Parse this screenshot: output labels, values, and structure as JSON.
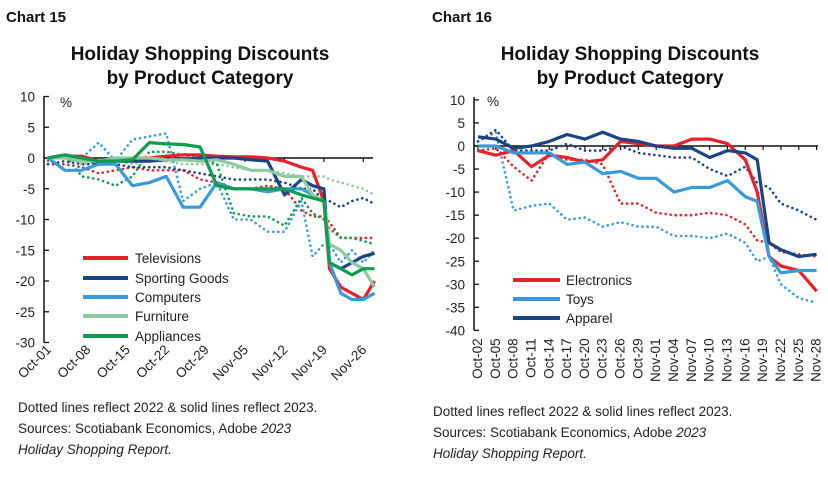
{
  "chart_data": [
    {
      "label": "Chart 15",
      "type": "line",
      "title": [
        "Holiday Shopping Discounts",
        "by Product Category"
      ],
      "ylabel": "%",
      "ylim": [
        -30,
        10
      ],
      "yticks": [
        10,
        5,
        0,
        -5,
        -10,
        -15,
        -20,
        -25,
        -30
      ],
      "xticks": [
        "Oct-01",
        "Oct-08",
        "Oct-15",
        "Oct-22",
        "Oct-29",
        "Nov-05",
        "Nov-12",
        "Nov-19",
        "Nov-26"
      ],
      "x": [
        "Oct-01",
        "Oct-04",
        "Oct-07",
        "Oct-10",
        "Oct-13",
        "Oct-16",
        "Oct-19",
        "Oct-22",
        "Oct-25",
        "Oct-28",
        "Oct-31",
        "Nov-03",
        "Nov-06",
        "Nov-09",
        "Nov-12",
        "Nov-15",
        "Nov-17",
        "Nov-19",
        "Nov-20",
        "Nov-22",
        "Nov-24",
        "Nov-26",
        "Nov-28"
      ],
      "legend_position": "bottom-left",
      "series": [
        {
          "name": "Televisions",
          "color": "#e8202a",
          "style": "solid",
          "values": [
            0,
            0.3,
            0.3,
            -0.5,
            -0.3,
            0,
            0,
            0.3,
            0.5,
            0.5,
            0.3,
            0.2,
            0.2,
            0,
            -0.5,
            -1.5,
            -2,
            -7,
            -18,
            -21,
            -22,
            -23,
            -20
          ]
        },
        {
          "name": "Sporting Goods",
          "color": "#1b4580",
          "style": "solid",
          "values": [
            0,
            0.5,
            0,
            -1,
            -0.5,
            -0.5,
            -0.5,
            -0.3,
            -0.3,
            0,
            0,
            0,
            -0.3,
            -0.5,
            -6,
            -3.5,
            -4.5,
            -5,
            -17,
            -18,
            -17,
            -16,
            -15.5
          ]
        },
        {
          "name": "Computers",
          "color": "#3a9ad9",
          "style": "solid",
          "values": [
            0,
            -2,
            -2,
            -1,
            -1,
            -4.5,
            -4,
            -3,
            -8,
            -8,
            -4,
            -5,
            -5,
            -5.5,
            -5,
            -5,
            -6,
            -7,
            -17,
            -22,
            -23,
            -23,
            -22
          ]
        },
        {
          "name": "Furniture",
          "color": "#8fc9a0",
          "style": "solid",
          "values": [
            0,
            0,
            -0.5,
            -0.5,
            0,
            0,
            0,
            -0.3,
            -0.3,
            -0.5,
            -0.3,
            -1,
            -2,
            -2,
            -3,
            -3,
            -6,
            -7,
            -14,
            -15,
            -17,
            -18,
            -21
          ]
        },
        {
          "name": "Appliances",
          "color": "#0f9b50",
          "style": "solid",
          "values": [
            0,
            0.5,
            0,
            -0.5,
            -0.5,
            -0.3,
            2.5,
            2.3,
            2.2,
            1.8,
            -4.5,
            -5,
            -5,
            -5,
            -5,
            -6,
            -6.5,
            -7,
            -17,
            -18,
            -19,
            -18,
            -18
          ]
        },
        {
          "color": "#e8202a",
          "style": "dotted",
          "values": [
            -1,
            -1,
            -1.5,
            -2.5,
            -2,
            -1.5,
            -2,
            -2,
            -2,
            -3.5,
            -4,
            -5,
            -5,
            -4.5,
            -5,
            -8.5,
            -9.5,
            -9.5,
            -10.5,
            -13,
            -13,
            -13,
            -13
          ]
        },
        {
          "color": "#1b4580",
          "style": "dotted",
          "values": [
            -1,
            -0.5,
            -1,
            -1,
            -1,
            -1.5,
            -1.5,
            -1.5,
            -2,
            -2.5,
            -3,
            -3.5,
            -3.5,
            -3.5,
            -4,
            -5,
            -5,
            -7,
            -7,
            -8,
            -7,
            -6.5,
            -7.5
          ]
        },
        {
          "color": "#3a9ad9",
          "style": "dotted",
          "values": [
            0,
            0.5,
            0,
            2.5,
            -0.5,
            3,
            3.5,
            4,
            -7,
            -5,
            -4,
            -10,
            -10,
            -12,
            -12,
            -7,
            -16,
            -14,
            -14,
            -17,
            -15,
            -17,
            -15
          ]
        },
        {
          "color": "#8fc9a0",
          "style": "dotted",
          "values": [
            0,
            0.5,
            -1,
            -0.5,
            -0.5,
            -1,
            -0.5,
            -0.5,
            -1,
            -1,
            -1,
            -1.5,
            -2,
            -2,
            -2.5,
            -3,
            -3,
            -3,
            -3.5,
            -4,
            -4.5,
            -5,
            -6
          ]
        },
        {
          "color": "#0f9b50",
          "style": "dotted",
          "values": [
            0,
            0.5,
            -3,
            -3.5,
            -4.5,
            -3,
            1,
            1,
            0.5,
            0,
            -1,
            -9,
            -9.5,
            -9.5,
            -11,
            -6.5,
            -9,
            -10,
            -11.5,
            -13,
            -13,
            -13.5,
            -14
          ]
        }
      ],
      "notes": [
        "Dotted lines reflect 2022 & solid lines reflect 2023.",
        "Sources: Scotiabank Economics, Adobe ",
        "2023",
        "Holiday Shopping Report."
      ]
    },
    {
      "label": "Chart 16",
      "type": "line",
      "title": [
        "Holiday Shopping Discounts",
        "by Product Category"
      ],
      "ylabel": "%",
      "ylim": [
        -40,
        10
      ],
      "yticks": [
        10,
        5,
        0,
        -5,
        -10,
        -15,
        -20,
        -25,
        -30,
        -35,
        -40
      ],
      "xticks": [
        "Oct-02",
        "Oct-05",
        "Oct-08",
        "Oct-11",
        "Oct-14",
        "Oct-17",
        "Oct-20",
        "Oct-23",
        "Oct-26",
        "Oct-29",
        "Nov-01",
        "Nov-04",
        "Nov-07",
        "Nov-10",
        "Nov-13",
        "Nov-16",
        "Nov-19",
        "Nov-22",
        "Nov-25",
        "Nov-28"
      ],
      "x": [
        "Oct-02",
        "Oct-05",
        "Oct-08",
        "Oct-11",
        "Oct-14",
        "Oct-17",
        "Oct-20",
        "Oct-23",
        "Oct-26",
        "Oct-29",
        "Nov-01",
        "Nov-04",
        "Nov-07",
        "Nov-10",
        "Nov-13",
        "Nov-16",
        "Nov-18",
        "Nov-20",
        "Nov-22",
        "Nov-25",
        "Nov-28"
      ],
      "legend_position": "bottom-left",
      "series": [
        {
          "name": "Electronics",
          "color": "#e8202a",
          "style": "solid",
          "values": [
            -1,
            -2,
            -1,
            -4.5,
            -2,
            -2.5,
            -3.5,
            -3,
            1,
            0.5,
            0,
            0,
            1.5,
            1.5,
            0.5,
            -3,
            -10,
            -24,
            -26,
            -27,
            -31.5
          ]
        },
        {
          "name": "Toys",
          "color": "#3a9ad9",
          "style": "solid",
          "values": [
            0,
            0,
            -1.5,
            -1.5,
            -1.5,
            -4,
            -3.5,
            -6,
            -5.5,
            -7,
            -7,
            -10,
            -9,
            -9,
            -7.5,
            -11,
            -12,
            -24,
            -27.5,
            -27,
            -27
          ]
        },
        {
          "name": "Apparel",
          "color": "#1b4580",
          "style": "solid",
          "values": [
            2,
            1.5,
            -0.5,
            0,
            1,
            2.5,
            1.5,
            3,
            1.5,
            1,
            0,
            -0.5,
            -0.5,
            -2.5,
            -1,
            -1.5,
            -3,
            -21,
            -22.5,
            -24,
            -23.5
          ]
        },
        {
          "color": "#e8202a",
          "style": "dotted",
          "values": [
            -1,
            -0.5,
            -4.5,
            -7.5,
            -1.5,
            -3,
            -3,
            -4,
            -12.5,
            -12.5,
            -14.5,
            -15,
            -15,
            -14.5,
            -15,
            -17,
            -20.5,
            -21,
            -23,
            -23.5,
            -24
          ]
        },
        {
          "color": "#3a9ad9",
          "style": "dotted",
          "values": [
            1,
            3,
            -14,
            -13,
            -12.5,
            -16,
            -15.5,
            -17.5,
            -16.5,
            -17.5,
            -17.5,
            -19.5,
            -19.5,
            -20,
            -19,
            -21,
            -25,
            -24,
            -30,
            -33,
            -34
          ]
        },
        {
          "color": "#1b4580",
          "style": "dotted",
          "values": [
            1,
            3.5,
            -1,
            -1,
            -1,
            0.5,
            -1,
            -1,
            0,
            -1.5,
            -2,
            -2.5,
            -2.5,
            -5,
            -6.5,
            -4.5,
            -8,
            -9,
            -12.5,
            -14,
            -16
          ]
        }
      ],
      "notes": [
        "Dotted lines reflect 2022 & solid lines reflect 2023.",
        "Sources: Scotiabank Economics, Adobe ",
        "2023",
        "Holiday Shopping Report."
      ]
    }
  ]
}
